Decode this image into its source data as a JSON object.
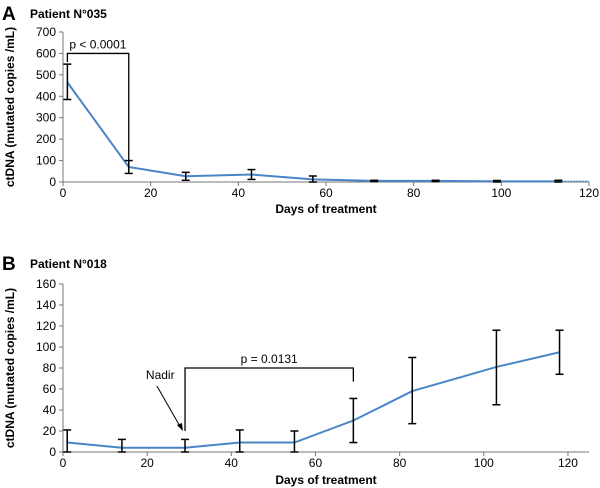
{
  "chart_data": [
    {
      "type": "line",
      "panel": "A",
      "title": "Patient N°035",
      "xlabel": "Days of treatment",
      "ylabel": "ctDNA (mutated copies /mL)",
      "xlim": [
        0,
        120
      ],
      "ylim": [
        0,
        700
      ],
      "xticks": [
        0,
        20,
        40,
        60,
        80,
        100,
        120
      ],
      "yticks": [
        0,
        100,
        200,
        300,
        400,
        500,
        600,
        700
      ],
      "grid": false,
      "color": "#4a86c5",
      "points": [
        {
          "x": 1,
          "y": 465,
          "lo": 385,
          "hi": 550
        },
        {
          "x": 15,
          "y": 70,
          "lo": 40,
          "hi": 100
        },
        {
          "x": 28,
          "y": 27,
          "lo": 8,
          "hi": 45
        },
        {
          "x": 43,
          "y": 35,
          "lo": 12,
          "hi": 58
        },
        {
          "x": 57,
          "y": 12,
          "lo": 0,
          "hi": 28
        },
        {
          "x": 71,
          "y": 5,
          "lo": 2,
          "hi": 8
        },
        {
          "x": 85,
          "y": 5,
          "lo": 2,
          "hi": 8
        },
        {
          "x": 99,
          "y": 3,
          "lo": 0,
          "hi": 7
        },
        {
          "x": 113,
          "y": 3,
          "lo": 0,
          "hi": 8
        }
      ],
      "annotation": {
        "text": "p < 0.0001",
        "x1": 1,
        "x2": 15,
        "top": 600,
        "y1_end": 560,
        "y2_end": 95
      }
    },
    {
      "type": "line",
      "panel": "B",
      "title": "Patient N°018",
      "xlabel": "Days of treatment",
      "ylabel": "ctDNA (mutated copies /mL)",
      "xlim": [
        0,
        125
      ],
      "ylim": [
        0,
        160
      ],
      "xticks": [
        0,
        20,
        40,
        60,
        80,
        100,
        120
      ],
      "yticks": [
        0,
        20,
        40,
        60,
        80,
        100,
        120,
        140,
        160
      ],
      "grid": false,
      "color": "#4a86c5",
      "points": [
        {
          "x": 1,
          "y": 9,
          "lo": 0,
          "hi": 21
        },
        {
          "x": 14,
          "y": 4,
          "lo": 0,
          "hi": 12
        },
        {
          "x": 29,
          "y": 4,
          "lo": 0,
          "hi": 12
        },
        {
          "x": 42,
          "y": 9,
          "lo": 0,
          "hi": 21
        },
        {
          "x": 55,
          "y": 9,
          "lo": 0,
          "hi": 20
        },
        {
          "x": 69,
          "y": 30,
          "lo": 9,
          "hi": 51
        },
        {
          "x": 83,
          "y": 58,
          "lo": 27,
          "hi": 90
        },
        {
          "x": 103,
          "y": 81,
          "lo": 45,
          "hi": 116
        },
        {
          "x": 118,
          "y": 95,
          "lo": 74,
          "hi": 116
        }
      ],
      "annotation": {
        "text": "p = 0.0131",
        "x1": 29,
        "x2": 69,
        "top": 80,
        "y1_end": 20,
        "y2_end": 67
      },
      "nadir": {
        "text": "Nadir",
        "x": 28.5,
        "y": 20
      }
    }
  ]
}
